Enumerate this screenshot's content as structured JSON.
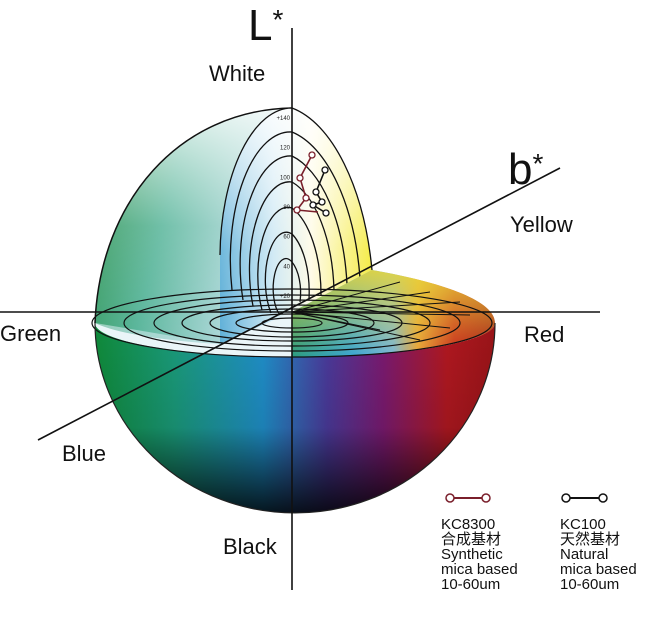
{
  "axes": {
    "L_axis": {
      "letter": "L",
      "mark": "*"
    },
    "b_axis": {
      "letter": "b",
      "mark": "*"
    }
  },
  "directions": {
    "white": "White",
    "black": "Black",
    "green": "Green",
    "red": "Red",
    "yellow": "Yellow",
    "blue": "Blue"
  },
  "scale_ticks": [
    "+140",
    "120",
    "100",
    "80",
    "60",
    "40",
    "+20"
  ],
  "legend": [
    {
      "code": "KC8300",
      "chinese": "合成基材",
      "line1": "Synthetic",
      "line2": "mica based",
      "size": "10-60um",
      "color": "#7a1f2b"
    },
    {
      "code": "KC100",
      "chinese": "天然基材",
      "line1": "Natural",
      "line2": "mica based",
      "size": "10-60um",
      "color": "#111111"
    }
  ]
}
